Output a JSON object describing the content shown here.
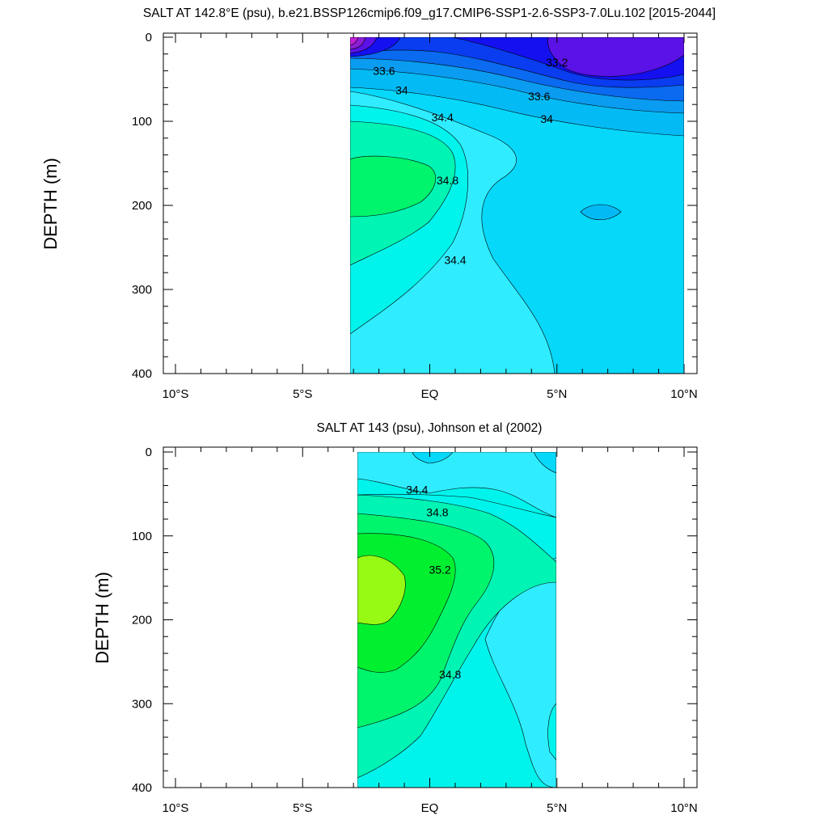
{
  "chart_data": [
    {
      "type": "contour",
      "title": "SALT AT 142.8°E (psu), b.e21.BSSP126cmip6.f09_g17.CMIP6-SSP1-2.6-SSP3-7.0Lu.102 [2015-2044]",
      "ylabel": "DEPTH (m)",
      "xlabel": "",
      "xlim": [
        -10,
        10
      ],
      "ylim": [
        0,
        400
      ],
      "y_reversed": true,
      "x_ticks": [
        -10,
        -5,
        0,
        5,
        10
      ],
      "x_tick_labels": [
        "10°S",
        "5°S",
        "EQ",
        "5°N",
        "10°N"
      ],
      "y_ticks": [
        0,
        100,
        200,
        300,
        400
      ],
      "y_tick_labels": [
        "0",
        "100",
        "200",
        "300",
        "400"
      ],
      "data_extent": {
        "lat": [
          -3,
          10
        ],
        "depth": [
          5,
          400
        ]
      },
      "contour_interval": 0.2,
      "levels": [
        {
          "value": 32.8,
          "color": "#8a1fd6"
        },
        {
          "value": 33.0,
          "color": "#5a12e6"
        },
        {
          "value": 33.2,
          "color": "#1410f0"
        },
        {
          "value": 33.4,
          "color": "#0a3cf0"
        },
        {
          "value": 33.6,
          "color": "#0a6af0"
        },
        {
          "value": 33.8,
          "color": "#0a9cf0"
        },
        {
          "value": 34.0,
          "color": "#04baf4"
        },
        {
          "value": 34.2,
          "color": "#06d8fa"
        },
        {
          "value": 34.4,
          "color": "#30ecff"
        },
        {
          "value": 34.6,
          "color": "#00f4ec"
        },
        {
          "value": 34.8,
          "color": "#00f4b4"
        },
        {
          "value": 35.0,
          "color": "#00f46c"
        }
      ],
      "contour_labels": [
        {
          "text": "33.6",
          "lat": -1.8,
          "depth": 40
        },
        {
          "text": "34",
          "lat": -1.1,
          "depth": 63
        },
        {
          "text": "34.4",
          "lat": 0.5,
          "depth": 95
        },
        {
          "text": "34.8",
          "lat": 0.7,
          "depth": 170
        },
        {
          "text": "34.4",
          "lat": 1.0,
          "depth": 265
        },
        {
          "text": "33.2",
          "lat": 5.0,
          "depth": 30
        },
        {
          "text": "33.6",
          "lat": 4.3,
          "depth": 70
        },
        {
          "text": "34",
          "lat": 4.6,
          "depth": 97
        }
      ]
    },
    {
      "type": "contour",
      "title": "SALT AT 143 (psu), Johnson et al (2002)",
      "ylabel": "DEPTH (m)",
      "xlabel": "",
      "xlim": [
        -10,
        10
      ],
      "ylim": [
        0,
        400
      ],
      "y_reversed": true,
      "x_ticks": [
        -10,
        -5,
        0,
        5,
        10
      ],
      "x_tick_labels": [
        "10°S",
        "5°S",
        "EQ",
        "5°N",
        "10°N"
      ],
      "y_ticks": [
        0,
        100,
        200,
        300,
        400
      ],
      "y_tick_labels": [
        "0",
        "100",
        "200",
        "300",
        "400"
      ],
      "data_extent": {
        "lat": [
          -2.8,
          5
        ],
        "depth": [
          5,
          400
        ]
      },
      "contour_interval": 0.2,
      "levels": [
        {
          "value": 34.2,
          "color": "#06d8fa"
        },
        {
          "value": 34.4,
          "color": "#30ecff"
        },
        {
          "value": 34.6,
          "color": "#00f4ec"
        },
        {
          "value": 34.8,
          "color": "#00f4b4"
        },
        {
          "value": 35.0,
          "color": "#00f46c"
        },
        {
          "value": 35.2,
          "color": "#00f030"
        },
        {
          "value": 35.4,
          "color": "#96fa14"
        }
      ],
      "contour_labels": [
        {
          "text": "34.4",
          "lat": -0.5,
          "depth": 45
        },
        {
          "text": "34.8",
          "lat": 0.3,
          "depth": 72
        },
        {
          "text": "35.2",
          "lat": 0.4,
          "depth": 140
        },
        {
          "text": "34.8",
          "lat": 0.8,
          "depth": 265
        }
      ]
    }
  ]
}
